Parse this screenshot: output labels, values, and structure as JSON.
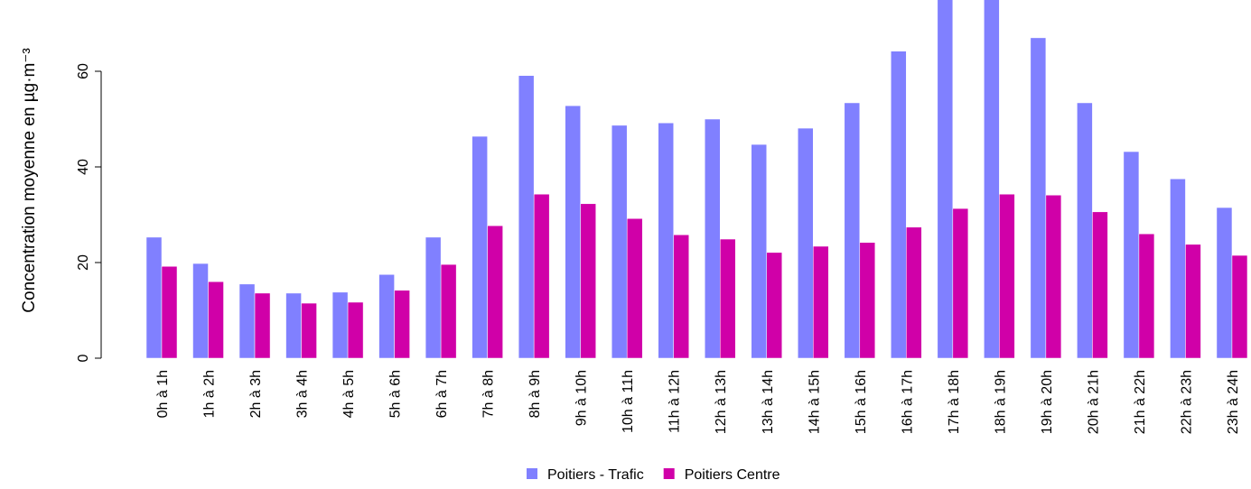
{
  "chart_data": {
    "type": "bar",
    "ylabel": "Concentration moyenne en µg·m⁻³",
    "categories": [
      "0h à 1h",
      "1h à 2h",
      "2h à 3h",
      "3h à 4h",
      "4h à 5h",
      "5h à 6h",
      "6h à 7h",
      "7h à 8h",
      "8h à 9h",
      "9h à 10h",
      "10h à 11h",
      "11h à 12h",
      "12h à 13h",
      "13h à 14h",
      "14h à 15h",
      "15h à 16h",
      "16h à 17h",
      "17h à 18h",
      "18h à 19h",
      "19h à 20h",
      "20h à 21h",
      "21h à 22h",
      "22h à 23h",
      "23h à 24h"
    ],
    "series": [
      {
        "name": "Poitiers - Trafic",
        "color": "#8080ff",
        "values": [
          25.3,
          19.8,
          15.5,
          13.6,
          13.8,
          17.5,
          25.3,
          46.4,
          59.1,
          52.8,
          48.7,
          49.2,
          50,
          44.7,
          48.1,
          53.4,
          64.2,
          80,
          79,
          67,
          53.4,
          43.2,
          37.5,
          31.5
        ]
      },
      {
        "name": "Poitiers Centre",
        "color": "#d000a8",
        "values": [
          19.2,
          16,
          13.6,
          11.5,
          11.7,
          14.2,
          19.6,
          27.7,
          34.3,
          32.3,
          29.2,
          25.8,
          24.9,
          22.1,
          23.4,
          24.2,
          27.4,
          31.3,
          34.3,
          34.1,
          30.6,
          26,
          23.8,
          21.5
        ]
      }
    ],
    "ylim": [
      0,
      75
    ],
    "yticks": [
      0,
      20,
      40,
      60
    ],
    "legend": "bottom"
  }
}
